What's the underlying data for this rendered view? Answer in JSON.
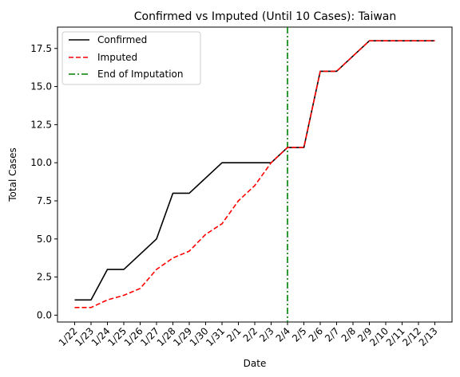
{
  "chart_data": {
    "type": "line",
    "title": "Confirmed vs Imputed (Until 10 Cases): Taiwan",
    "xlabel": "Date",
    "ylabel": "Total Cases",
    "categories": [
      "1/22",
      "1/23",
      "1/24",
      "1/25",
      "1/26",
      "1/27",
      "1/28",
      "1/29",
      "1/30",
      "1/31",
      "2/1",
      "2/2",
      "2/3",
      "2/4",
      "2/5",
      "2/6",
      "2/7",
      "2/8",
      "2/9",
      "2/10",
      "2/11",
      "2/12",
      "2/13"
    ],
    "ylim": [
      -0.45,
      18.9
    ],
    "yticks": [
      0.0,
      2.5,
      5.0,
      7.5,
      10.0,
      12.5,
      15.0,
      17.5
    ],
    "ytick_labels": [
      "0.0",
      "2.5",
      "5.0",
      "7.5",
      "10.0",
      "12.5",
      "15.0",
      "17.5"
    ],
    "grid": false,
    "legend_placement": "top-left",
    "series": [
      {
        "name": "Confirmed",
        "color": "#000000",
        "style": "solid",
        "values": [
          1,
          1,
          3,
          3,
          4,
          5,
          8,
          8,
          9,
          10,
          10,
          10,
          10,
          11,
          11,
          16,
          16,
          17,
          18,
          18,
          18,
          18,
          18
        ]
      },
      {
        "name": "Imputed",
        "color": "#ff0000",
        "style": "dashed",
        "values": [
          0.5,
          0.5,
          1.0,
          1.3,
          1.75,
          3.0,
          3.75,
          4.2,
          5.3,
          6.0,
          7.5,
          8.5,
          10.0,
          11,
          11,
          16,
          16,
          17,
          18,
          18,
          18,
          18,
          18
        ]
      }
    ],
    "vline": {
      "name": "End of Imputation",
      "color": "#008000",
      "style": "dashdot",
      "x": "2/4"
    }
  }
}
